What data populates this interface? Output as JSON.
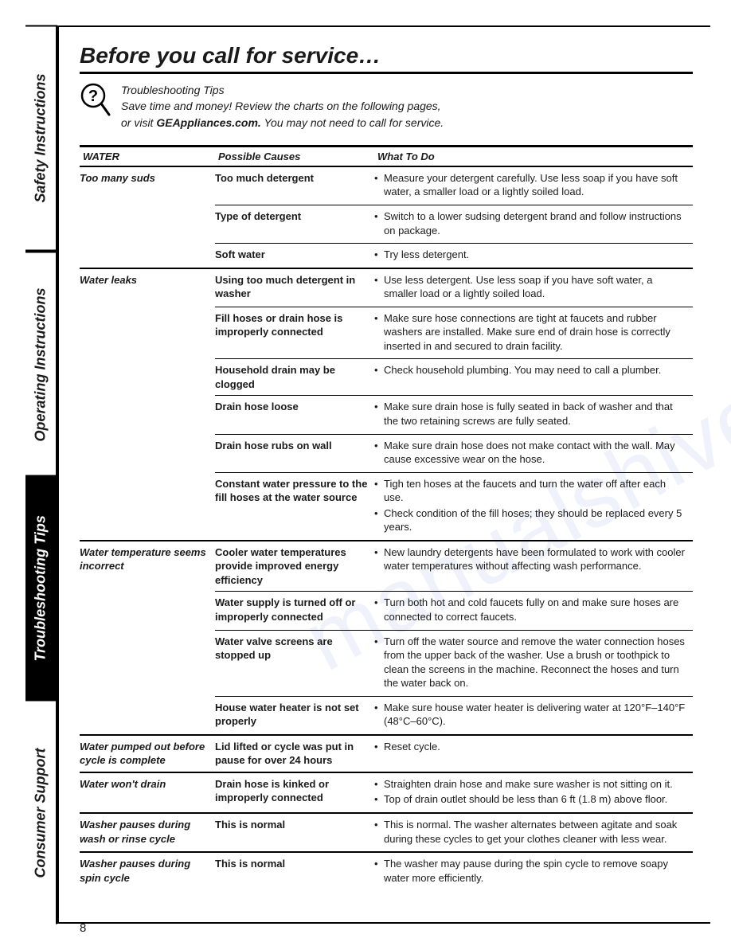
{
  "tabs": [
    "Safety Instructions",
    "Operating Instructions",
    "Troubleshooting Tips",
    "Consumer Support"
  ],
  "active_tab_index": 2,
  "title": "Before you call for service…",
  "intro": {
    "line1": "Troubleshooting Tips",
    "line2_a": "Save time and money! Review the charts on the following pages,",
    "line2_b": "or visit ",
    "bold": "GEAppliances.com.",
    "line2_c": " You may not need to call for service."
  },
  "columns": [
    "WATER",
    "Possible Causes",
    "What To Do"
  ],
  "rows": [
    {
      "problem": "Too many suds",
      "cause": "Too much detergent",
      "todo": [
        "Measure your detergent carefully. Use less soap if you have soft water, a smaller load or a lightly soiled load."
      ],
      "sep": "problem"
    },
    {
      "problem": "",
      "cause": "Type of detergent",
      "todo": [
        "Switch to a lower sudsing detergent brand and follow instructions on package."
      ],
      "sep": "cause"
    },
    {
      "problem": "",
      "cause": "Soft water",
      "todo": [
        "Try less detergent."
      ],
      "sep": "cause"
    },
    {
      "problem": "Water leaks",
      "cause": "Using too much detergent in washer",
      "todo": [
        "Use less detergent. Use less soap if you have soft water, a smaller load or a lightly soiled load."
      ],
      "sep": "problem"
    },
    {
      "problem": "",
      "cause": "Fill hoses or drain hose is improperly connected",
      "todo": [
        "Make sure hose connections are tight at faucets and rubber washers are installed. Make sure end of drain hose is correctly inserted in and secured to drain facility."
      ],
      "sep": "cause"
    },
    {
      "problem": "",
      "cause": "Household drain may be clogged",
      "todo": [
        "Check household plumbing. You may need to call a plumber."
      ],
      "sep": "cause"
    },
    {
      "problem": "",
      "cause": "Drain hose loose",
      "todo": [
        "Make sure drain hose is fully seated in back of washer and that the two retaining screws are fully seated."
      ],
      "sep": "cause"
    },
    {
      "problem": "",
      "cause": "Drain hose rubs on wall",
      "todo": [
        "Make sure drain hose does not make contact with the wall. May cause excessive wear on the hose."
      ],
      "sep": "cause"
    },
    {
      "problem": "",
      "cause": "Constant water pressure to the fill hoses at the water source",
      "todo": [
        "Tigh ten hoses at the faucets and turn the water off after each use.",
        "Check condition of the fill hoses; they should be replaced every 5 years."
      ],
      "sep": "cause"
    },
    {
      "problem": "Water temperature seems incorrect",
      "cause": "Cooler water temperatures provide improved energy efficiency",
      "todo": [
        "New laundry detergents have been formulated to work with cooler water temperatures without affecting wash performance."
      ],
      "sep": "problem"
    },
    {
      "problem": "",
      "cause": "Water supply is turned off or improperly connected",
      "todo": [
        "Turn both hot and cold faucets fully on and make sure hoses are connected to correct faucets."
      ],
      "sep": "cause"
    },
    {
      "problem": "",
      "cause": "Water valve screens are stopped up",
      "todo": [
        "Turn off the water source and remove the water connection hoses from the upper back of the washer. Use a brush or toothpick to clean the screens in the machine. Reconnect the hoses and turn the water back on."
      ],
      "sep": "cause"
    },
    {
      "problem": "",
      "cause": "House water heater is not set properly",
      "todo": [
        "Make sure house water heater is delivering water at 120°F–140°F (48°C–60°C)."
      ],
      "sep": "cause"
    },
    {
      "problem": "Water pumped out before cycle is complete",
      "cause": "Lid lifted or cycle was put in pause for over 24 hours",
      "todo": [
        "Reset cycle."
      ],
      "sep": "problem"
    },
    {
      "problem": "Water won't drain",
      "cause": "Drain hose is kinked or improperly connected",
      "todo": [
        "Straighten drain hose and make sure washer is not sitting on it.",
        "Top of drain outlet should be less than 6 ft (1.8 m) above floor."
      ],
      "sep": "problem"
    },
    {
      "problem": "Washer pauses during wash or rinse cycle",
      "cause": "This is normal",
      "todo": [
        "This is normal. The washer alternates between agitate and soak during these cycles to get your clothes cleaner with less wear."
      ],
      "sep": "problem"
    },
    {
      "problem": "Washer pauses during spin cycle",
      "cause": "This is normal",
      "todo": [
        "The washer may pause during the spin cycle to remove soapy water more efficiently."
      ],
      "sep": "problem"
    }
  ],
  "page_number": "8",
  "watermark": "manualshive.com"
}
